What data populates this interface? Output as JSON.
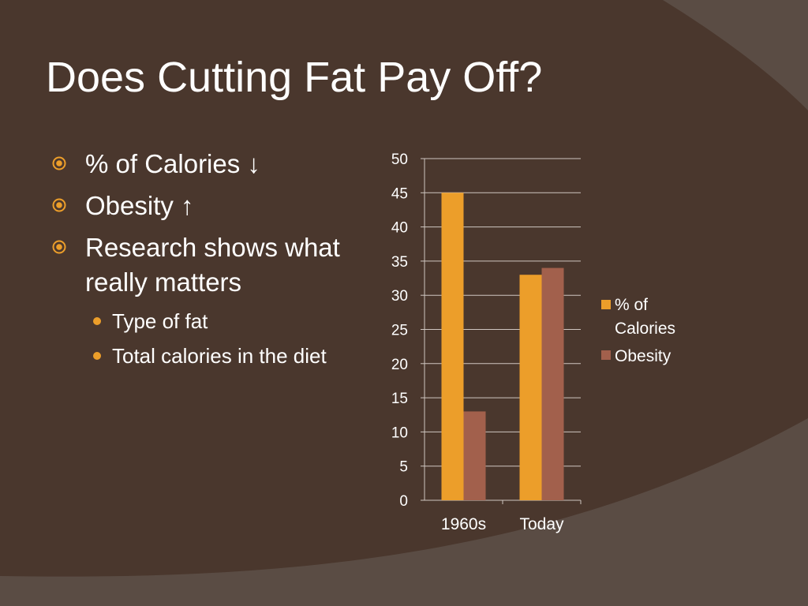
{
  "slide": {
    "title": "Does Cutting Fat Pay Off?",
    "bullets": [
      {
        "text": "% of Calories ↓",
        "level": 1
      },
      {
        "text": "Obesity ↑",
        "level": 1
      },
      {
        "text": "Research shows what really matters",
        "level": 1
      },
      {
        "text": "Type of fat",
        "level": 2
      },
      {
        "text": "Total calories in the diet",
        "level": 2
      }
    ]
  },
  "colors": {
    "background": "#4a372d",
    "accent": "#ec9e2a",
    "series_2": "#a2604c",
    "text": "#ffffff"
  },
  "chart_data": {
    "type": "bar",
    "categories": [
      "1960s",
      "Today"
    ],
    "series": [
      {
        "name": "% of Calories",
        "values": [
          45,
          33
        ]
      },
      {
        "name": "Obesity",
        "values": [
          13,
          34
        ]
      }
    ],
    "ylim": [
      0,
      50
    ],
    "yticks": [
      0,
      5,
      10,
      15,
      20,
      25,
      30,
      35,
      40,
      45,
      50
    ],
    "grid": true,
    "legend": "right",
    "title": "",
    "xlabel": "",
    "ylabel": ""
  }
}
